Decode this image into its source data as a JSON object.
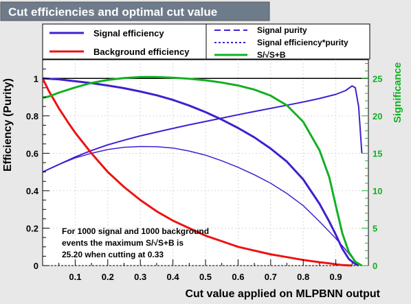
{
  "chart_data": {
    "type": "line",
    "title": "Cut efficiencies and optimal cut value",
    "xlabel": "Cut value applied on MLPBNN output",
    "ylabel": "Efficiency (Purity)",
    "y2label": "Significance",
    "xlim": [
      0.0,
      1.0
    ],
    "ylim": [
      0,
      1.1
    ],
    "y2lim": [
      0,
      27.5
    ],
    "xticks": [
      "0.1",
      "0.2",
      "0.3",
      "0.4",
      "0.5",
      "0.6",
      "0.7",
      "0.8",
      "0.9"
    ],
    "xtick_values": [
      0.1,
      0.2,
      0.3,
      0.4,
      0.5,
      0.6,
      0.7,
      0.8,
      0.9
    ],
    "yticks": [
      "0",
      "0.2",
      "0.4",
      "0.6",
      "0.8",
      "1"
    ],
    "ytick_values": [
      0,
      0.2,
      0.4,
      0.6,
      0.8,
      1.0
    ],
    "y2ticks": [
      "0",
      "5",
      "10",
      "15",
      "20",
      "25"
    ],
    "y2tick_values": [
      0,
      5,
      10,
      15,
      20,
      25
    ],
    "grid": true,
    "legend_placement": "top",
    "reference_line_y": 1.0,
    "annotation": [
      "For 1000 signal and 1000 background",
      "events the maximum S/√S+B is",
      "25.20 when cutting at  0.33"
    ],
    "colors": {
      "signal": "#3f1fd0",
      "background": "#ee1111",
      "significance": "#11b022",
      "axis2": "#11b022"
    },
    "series": [
      {
        "name": "Signal efficiency",
        "axis": "left",
        "style": "solid",
        "color": "#3f1fd0",
        "x": [
          0.0,
          0.05,
          0.1,
          0.15,
          0.2,
          0.25,
          0.3,
          0.35,
          0.4,
          0.45,
          0.5,
          0.55,
          0.6,
          0.65,
          0.7,
          0.75,
          0.8,
          0.85,
          0.88,
          0.9,
          0.92,
          0.94,
          0.96,
          0.97
        ],
        "y": [
          1.0,
          0.995,
          0.985,
          0.975,
          0.962,
          0.948,
          0.93,
          0.91,
          0.885,
          0.855,
          0.82,
          0.78,
          0.735,
          0.685,
          0.625,
          0.555,
          0.46,
          0.33,
          0.235,
          0.165,
          0.09,
          0.035,
          0.008,
          0.0
        ]
      },
      {
        "name": "Background efficiency",
        "axis": "left",
        "style": "solid",
        "color": "#ee1111",
        "x": [
          0.0,
          0.02,
          0.05,
          0.08,
          0.1,
          0.15,
          0.2,
          0.25,
          0.3,
          0.35,
          0.4,
          0.45,
          0.5,
          0.55,
          0.6,
          0.65,
          0.7,
          0.75,
          0.8,
          0.85,
          0.88,
          0.9,
          0.92,
          0.95
        ],
        "y": [
          1.0,
          0.93,
          0.84,
          0.76,
          0.71,
          0.6,
          0.5,
          0.42,
          0.35,
          0.29,
          0.24,
          0.2,
          0.16,
          0.13,
          0.1,
          0.08,
          0.06,
          0.045,
          0.03,
          0.018,
          0.012,
          0.007,
          0.003,
          0.0
        ]
      },
      {
        "name": "Signal purity",
        "axis": "left",
        "style": "dashed",
        "color": "#3f1fd0",
        "x": [
          0.0,
          0.05,
          0.1,
          0.15,
          0.2,
          0.25,
          0.3,
          0.35,
          0.4,
          0.45,
          0.5,
          0.55,
          0.6,
          0.65,
          0.7,
          0.75,
          0.8,
          0.85,
          0.9,
          0.93,
          0.95,
          0.96,
          0.97,
          0.98
        ],
        "y": [
          0.5,
          0.54,
          0.58,
          0.615,
          0.645,
          0.67,
          0.693,
          0.713,
          0.733,
          0.752,
          0.77,
          0.788,
          0.806,
          0.823,
          0.84,
          0.857,
          0.874,
          0.893,
          0.915,
          0.935,
          0.96,
          0.95,
          0.85,
          0.6
        ]
      },
      {
        "name": "Signal efficiency*purity",
        "axis": "left",
        "style": "dotted",
        "color": "#3f1fd0",
        "x": [
          0.0,
          0.05,
          0.1,
          0.15,
          0.2,
          0.25,
          0.3,
          0.35,
          0.4,
          0.45,
          0.5,
          0.55,
          0.6,
          0.65,
          0.7,
          0.75,
          0.8,
          0.85,
          0.9,
          0.93,
          0.96,
          0.97
        ],
        "y": [
          0.5,
          0.54,
          0.575,
          0.6,
          0.62,
          0.632,
          0.636,
          0.635,
          0.628,
          0.612,
          0.59,
          0.56,
          0.525,
          0.485,
          0.44,
          0.385,
          0.32,
          0.235,
          0.145,
          0.085,
          0.02,
          0.0
        ]
      },
      {
        "name": "S/√S+B",
        "axis": "right",
        "style": "solid",
        "color": "#11b022",
        "x": [
          0.0,
          0.02,
          0.05,
          0.1,
          0.15,
          0.2,
          0.25,
          0.3,
          0.33,
          0.35,
          0.4,
          0.45,
          0.5,
          0.55,
          0.6,
          0.65,
          0.7,
          0.75,
          0.8,
          0.85,
          0.88,
          0.9,
          0.92,
          0.94,
          0.96,
          0.98
        ],
        "y": [
          22.4,
          22.6,
          23.1,
          23.8,
          24.4,
          24.8,
          25.05,
          25.18,
          25.2,
          25.18,
          25.1,
          24.95,
          24.75,
          24.45,
          24.05,
          23.5,
          22.7,
          21.4,
          19.2,
          15.4,
          11.8,
          8.0,
          4.3,
          1.8,
          0.5,
          0.0
        ]
      }
    ]
  }
}
